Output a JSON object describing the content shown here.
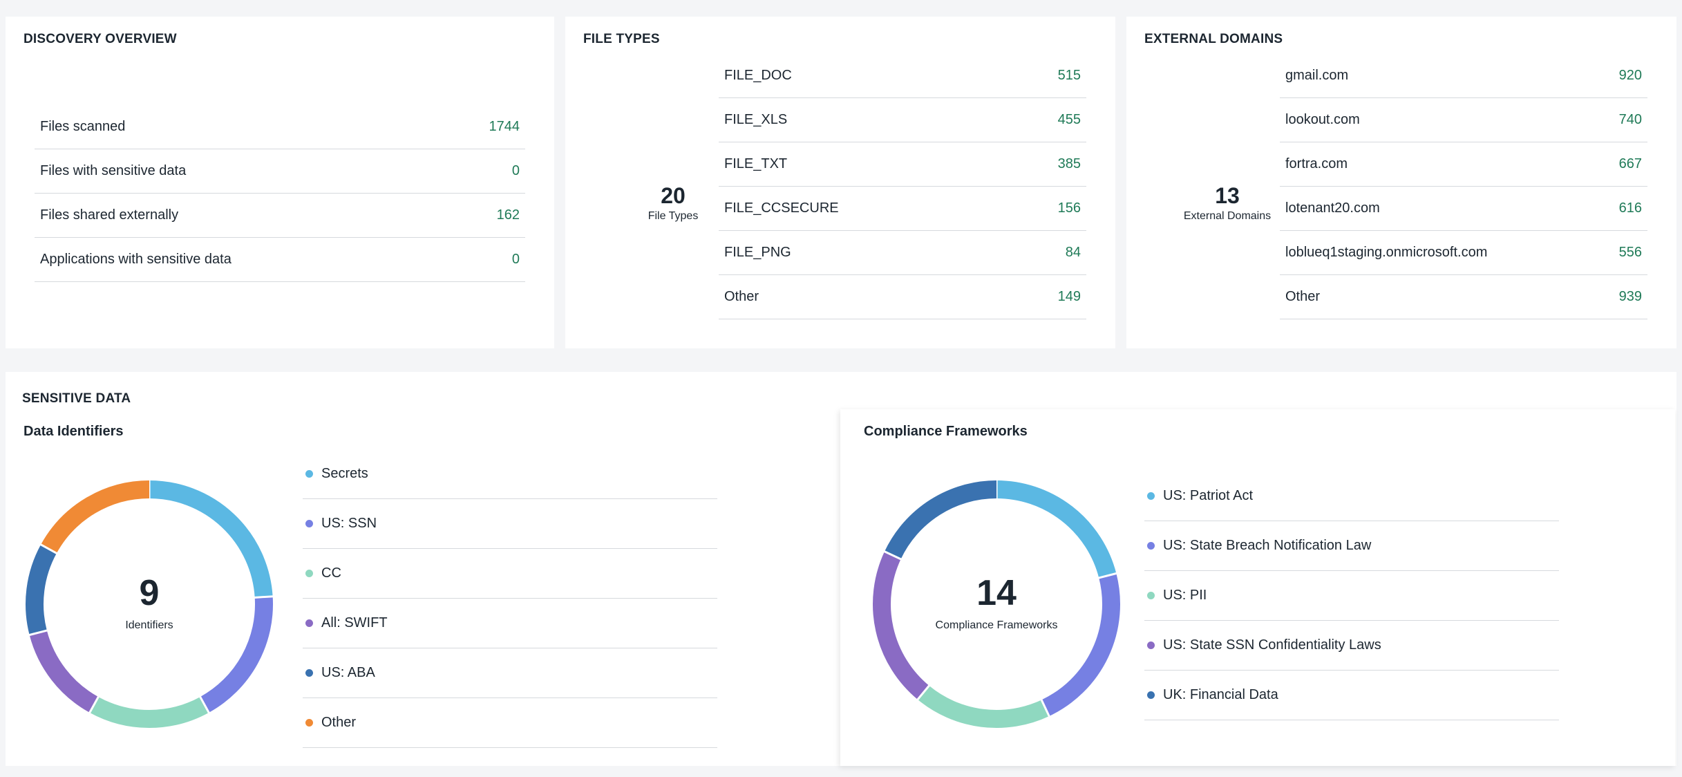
{
  "discovery": {
    "title": "DISCOVERY OVERVIEW",
    "rows": [
      {
        "label": "Files scanned",
        "value": "1744"
      },
      {
        "label": "Files with sensitive data",
        "value": "0"
      },
      {
        "label": "Files shared externally",
        "value": "162"
      },
      {
        "label": "Applications with sensitive data",
        "value": "0"
      }
    ]
  },
  "file_types": {
    "title": "FILE TYPES",
    "count": "20",
    "caption": "File Types",
    "rows": [
      {
        "label": "FILE_DOC",
        "value": "515"
      },
      {
        "label": "FILE_XLS",
        "value": "455"
      },
      {
        "label": "FILE_TXT",
        "value": "385"
      },
      {
        "label": "FILE_CCSECURE",
        "value": "156"
      },
      {
        "label": "FILE_PNG",
        "value": "84"
      },
      {
        "label": "Other",
        "value": "149"
      }
    ]
  },
  "external_domains": {
    "title": "EXTERNAL DOMAINS",
    "count": "13",
    "caption": "External Domains",
    "rows": [
      {
        "label": "gmail.com",
        "value": "920"
      },
      {
        "label": "lookout.com",
        "value": "740"
      },
      {
        "label": "fortra.com",
        "value": "667"
      },
      {
        "label": "lotenant20.com",
        "value": "616"
      },
      {
        "label": "loblueq1staging.onmicrosoft.com",
        "value": "556"
      },
      {
        "label": "Other",
        "value": "939"
      }
    ]
  },
  "sensitive_data": {
    "title": "SENSITIVE DATA",
    "identifiers": {
      "title": "Data Identifiers",
      "count": "9",
      "caption": "Identifiers",
      "legend": [
        {
          "label": "Secrets",
          "color": "#5bb8e3"
        },
        {
          "label": "US: SSN",
          "color": "#7680e3"
        },
        {
          "label": "CC",
          "color": "#8fd8c0"
        },
        {
          "label": "All: SWIFT",
          "color": "#8a6bc4"
        },
        {
          "label": "US: ABA",
          "color": "#3a72b0"
        },
        {
          "label": "Other",
          "color": "#f08a35"
        }
      ],
      "segments": [
        {
          "label": "Secrets",
          "share": 0.24,
          "color": "#5bb8e3"
        },
        {
          "label": "US: SSN",
          "share": 0.18,
          "color": "#7680e3"
        },
        {
          "label": "CC",
          "share": 0.16,
          "color": "#8fd8c0"
        },
        {
          "label": "All: SWIFT",
          "share": 0.13,
          "color": "#8a6bc4"
        },
        {
          "label": "US: ABA",
          "share": 0.12,
          "color": "#3a72b0"
        },
        {
          "label": "Other",
          "share": 0.17,
          "color": "#f08a35"
        }
      ]
    },
    "compliance": {
      "title": "Compliance Frameworks",
      "count": "14",
      "caption": "Compliance Frameworks",
      "legend": [
        {
          "label": "US: Patriot Act",
          "color": "#5bb8e3"
        },
        {
          "label": "US: State Breach Notification Law",
          "color": "#7680e3"
        },
        {
          "label": "US: PII",
          "color": "#8fd8c0"
        },
        {
          "label": "US: State SSN Confidentiality Laws",
          "color": "#8a6bc4"
        },
        {
          "label": "UK: Financial Data",
          "color": "#3a72b0"
        }
      ],
      "segments": [
        {
          "label": "US: Patriot Act",
          "share": 0.21,
          "color": "#5bb8e3"
        },
        {
          "label": "US: State Breach Notification Law",
          "share": 0.22,
          "color": "#7680e3"
        },
        {
          "label": "US: PII",
          "share": 0.18,
          "color": "#8fd8c0"
        },
        {
          "label": "US: State SSN Confidentiality Laws",
          "share": 0.21,
          "color": "#8a6bc4"
        },
        {
          "label": "UK: Financial Data",
          "share": 0.18,
          "color": "#3a72b0"
        }
      ]
    }
  }
}
